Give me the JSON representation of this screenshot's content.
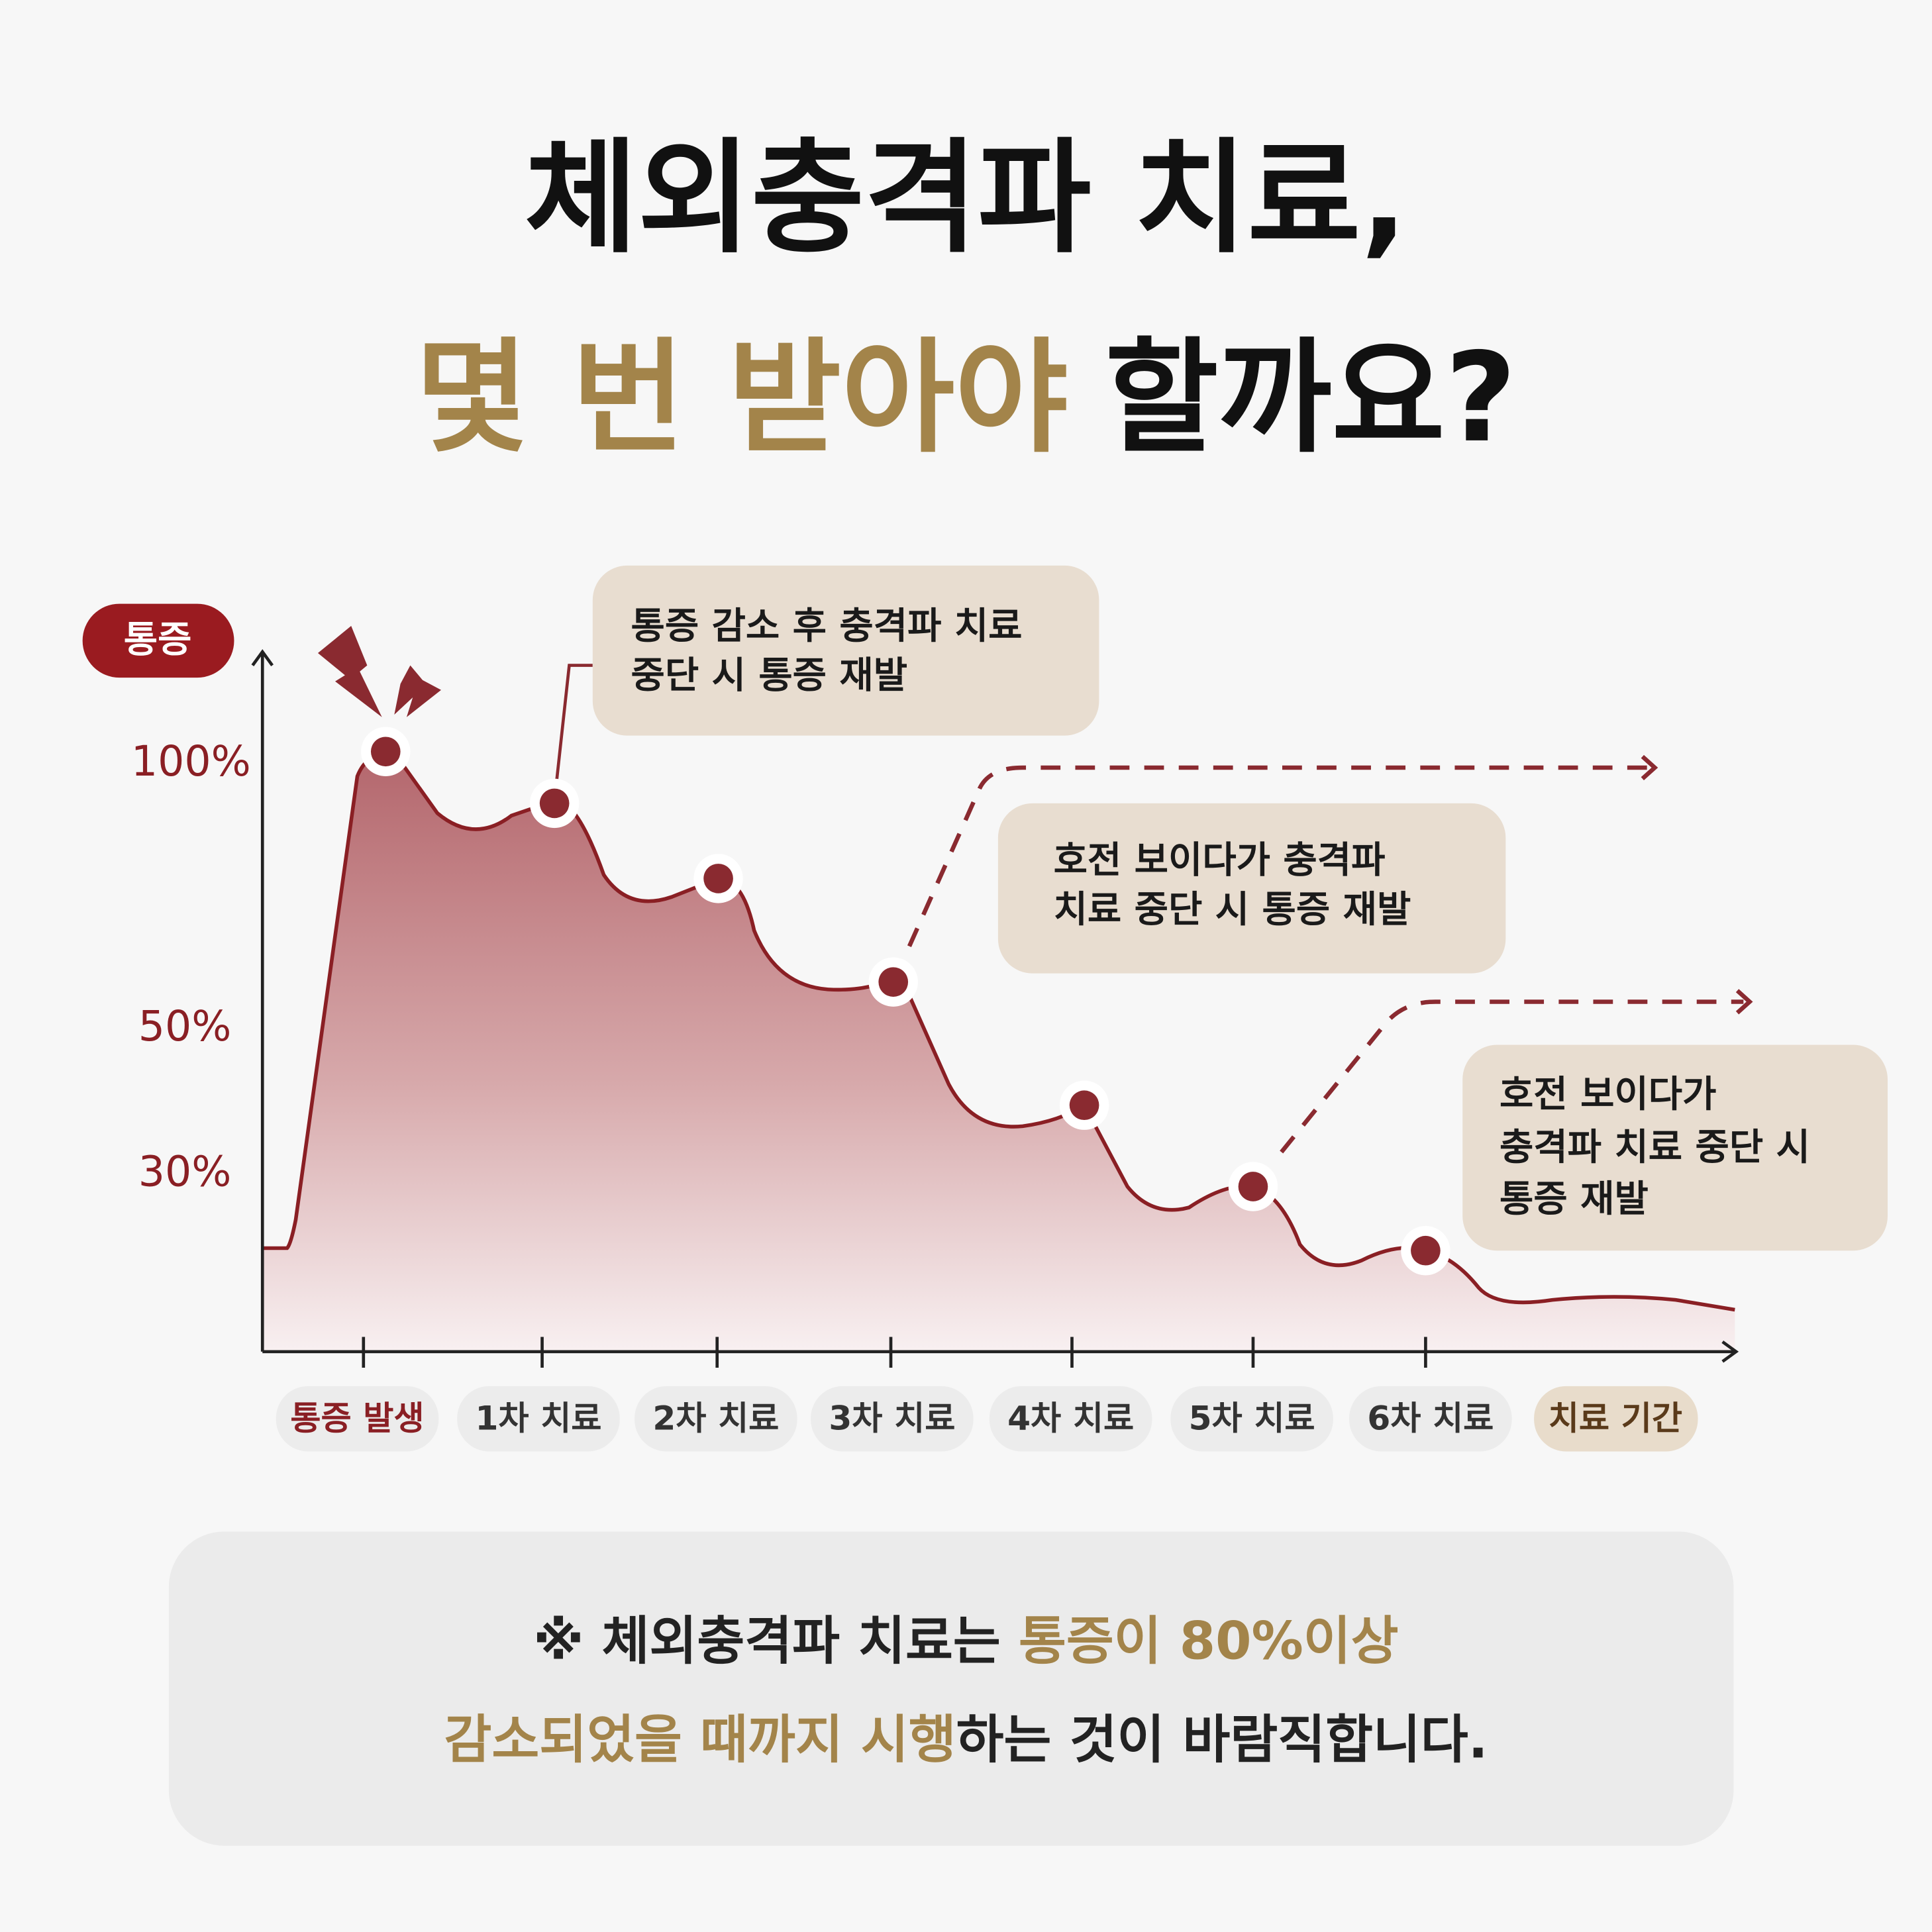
{
  "title": {
    "line1": "체외충격파 치료,",
    "line2_highlight": "몇 번 받아야",
    "line2_rest": "할까요?"
  },
  "y_axis": {
    "label": "통증",
    "ticks": [
      "100%",
      "50%",
      "30%"
    ]
  },
  "x_axis": {
    "labels": [
      "통증 발생",
      "1차 치료",
      "2차 치료",
      "3차 치료",
      "4차 치료",
      "5차 치료",
      "6차 치료"
    ],
    "end_label": "치료 기간"
  },
  "callouts": [
    [
      "통증 감소 후 충격파 치료",
      "중단 시 통증 재발"
    ],
    [
      "호전 보이다가 충격파",
      "치료 중단 시 통증 재발"
    ],
    [
      "호전 보이다가",
      "충격파 치료 중단 시",
      "통증 재발"
    ]
  ],
  "note": {
    "line1_plain": "※ 체외충격파 치료는 ",
    "line1_highlight": "통증이 80%이상",
    "line2_highlight": "감소되었을 때까지 시행",
    "line2_plain": "하는 것이 바람직합니다."
  }
}
